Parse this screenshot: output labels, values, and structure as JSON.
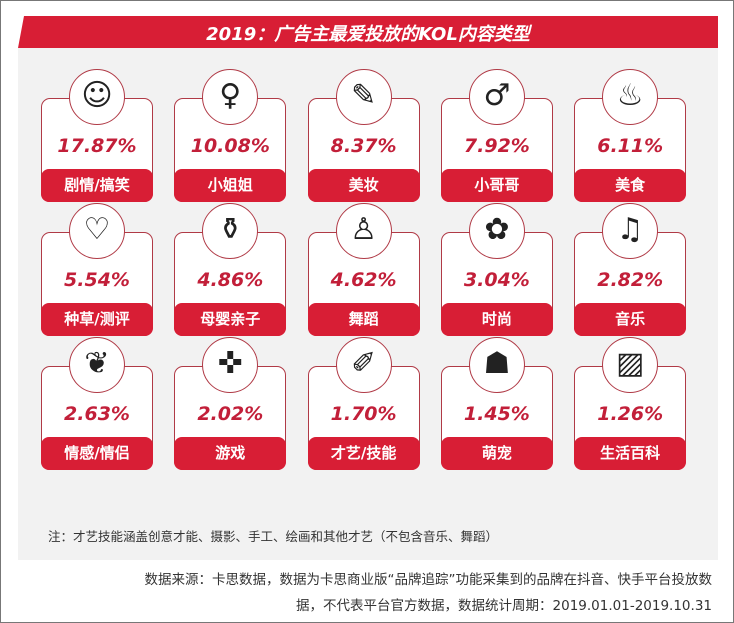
{
  "title": "2019：广告主最爱投放的KOL内容类型",
  "chart_data": {
    "type": "table",
    "title": "2019：广告主最爱投放的KOL内容类型",
    "categories": [
      "剧情/搞笑",
      "小姐姐",
      "美妆",
      "小哥哥",
      "美食",
      "种草/测评",
      "母婴亲子",
      "舞蹈",
      "时尚",
      "音乐",
      "情感/情侣",
      "游戏",
      "才艺/技能",
      "萌宠",
      "生活百科"
    ],
    "values": [
      17.87,
      10.08,
      8.37,
      7.92,
      6.11,
      5.54,
      4.86,
      4.62,
      3.04,
      2.82,
      2.63,
      2.02,
      1.7,
      1.45,
      1.26
    ],
    "labels": [
      "17.87%",
      "10.08%",
      "8.37%",
      "7.92%",
      "6.11%",
      "5.54%",
      "4.86%",
      "4.62%",
      "3.04%",
      "2.82%",
      "2.63%",
      "2.02%",
      "1.70%",
      "1.45%",
      "1.26%"
    ],
    "icons": [
      "smiley-face-icon",
      "girl-icon",
      "makeup-brush-icon",
      "boy-icon",
      "food-bowl-icon",
      "heart-icon",
      "baby-bottle-icon",
      "dancer-icon",
      "dress-icon",
      "music-note-icon",
      "couple-icon",
      "gamepad-icon",
      "palette-icon",
      "dog-icon",
      "picture-icon"
    ],
    "glyphs": [
      "☺",
      "♀",
      "✎",
      "♂",
      "♨",
      "♡",
      "⚱",
      "♙",
      "✿",
      "♫",
      "❦",
      "✜",
      "✐",
      "☗",
      "▨"
    ]
  },
  "note": "注：才艺技能涵盖创意才能、摄影、手工、绘画和其他才艺（不包含音乐、舞蹈）",
  "source_line1": "数据来源：卡思数据，数据为卡思商业版“品牌追踪”功能采集到的品牌在抖音、快手平台投放数",
  "source_line2": "据，不代表平台官方数据，数据统计周期：2019.01.01-2019.10.31",
  "colors": {
    "accent": "#d81e35",
    "panel": "#f2f2f2"
  }
}
